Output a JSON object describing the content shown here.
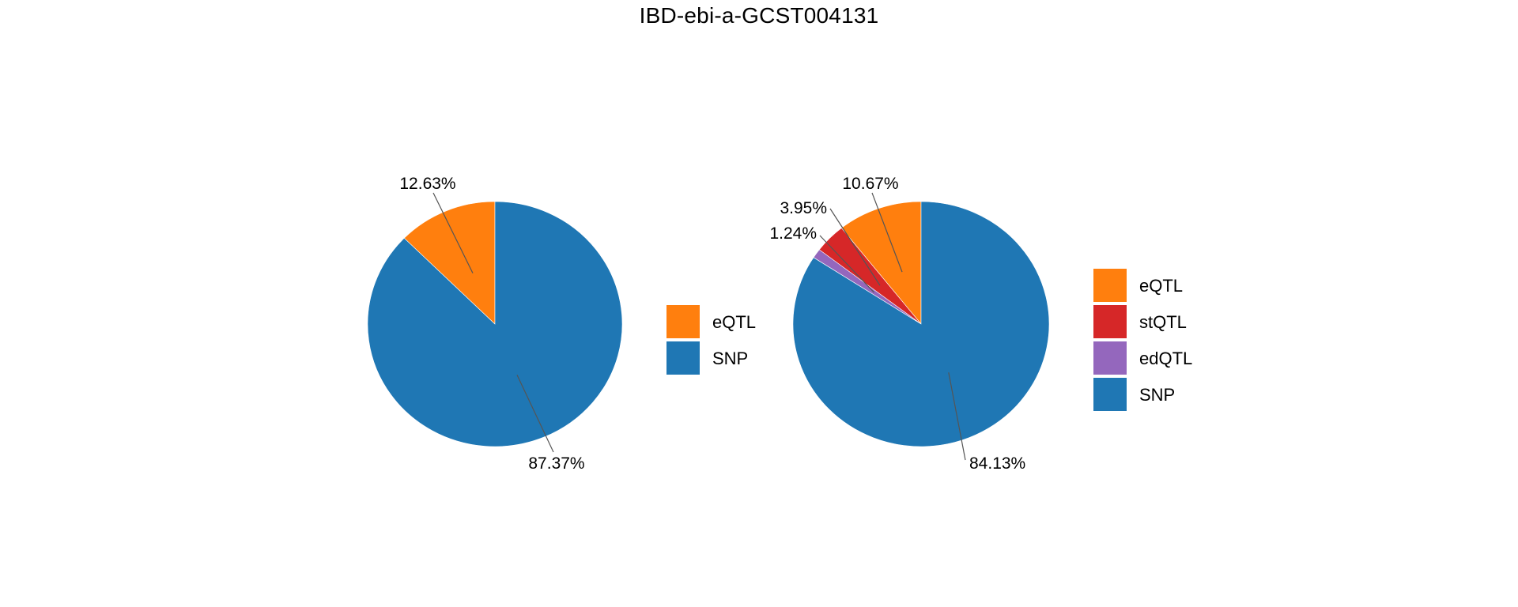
{
  "chart_data": [
    {
      "type": "pie",
      "title": "IBD-ebi-a-GCST004131",
      "slices": [
        {
          "label": "eQTL",
          "value": 12.63,
          "display": "12.63%",
          "color": "#ff7f0e"
        },
        {
          "label": "SNP",
          "value": 87.37,
          "display": "87.37%",
          "color": "#1f77b4"
        }
      ],
      "legend": [
        "eQTL",
        "SNP"
      ],
      "legend_placement": "right"
    },
    {
      "type": "pie",
      "slices": [
        {
          "label": "eQTL",
          "value": 10.67,
          "display": "10.67%",
          "color": "#ff7f0e"
        },
        {
          "label": "stQTL",
          "value": 3.95,
          "display": "3.95%",
          "color": "#d62728"
        },
        {
          "label": "edQTL",
          "value": 1.24,
          "display": "1.24%",
          "color": "#9467bd"
        },
        {
          "label": "SNP",
          "value": 84.13,
          "display": "84.13%",
          "color": "#1f77b4"
        }
      ],
      "legend": [
        "eQTL",
        "stQTL",
        "edQTL",
        "SNP"
      ],
      "legend_placement": "right"
    }
  ]
}
